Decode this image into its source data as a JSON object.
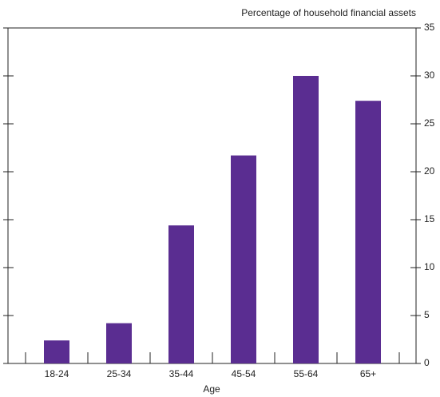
{
  "chart_data": {
    "type": "bar",
    "ylabel": "Percentage of household financial assets",
    "xlabel": "Age",
    "categories": [
      "18-24",
      "25-34",
      "35-44",
      "45-54",
      "55-64",
      "65+"
    ],
    "values": [
      2.4,
      4.2,
      14.4,
      21.7,
      30,
      27.4
    ],
    "color": "#5a2d91",
    "ylim": [
      0,
      35
    ],
    "yticks": [
      0,
      5,
      10,
      15,
      20,
      25,
      30,
      35
    ]
  }
}
